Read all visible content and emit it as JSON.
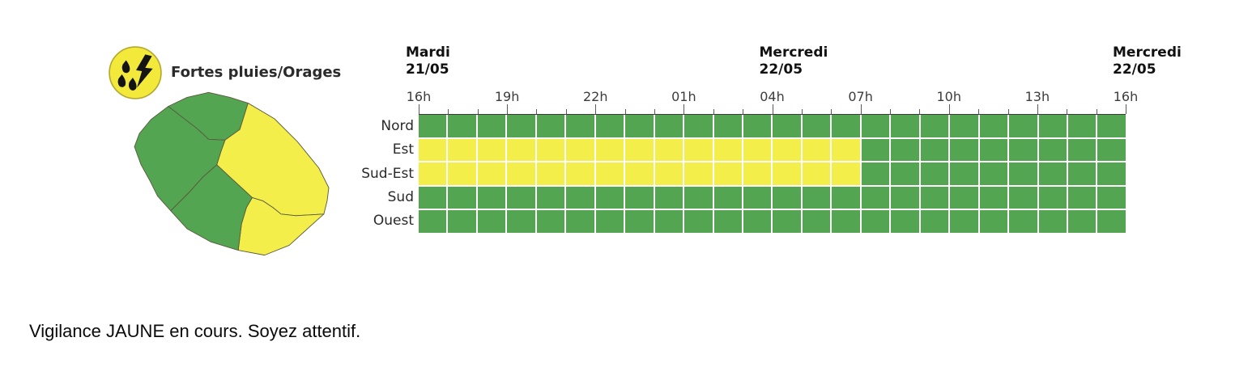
{
  "alert": {
    "type_label": "Fortes pluies/Orages",
    "icon": "rain-thunderstorm-icon",
    "icon_bg_color": "#f2e93b",
    "icon_border_color": "#b3a930",
    "icon_glyph_color": "#141414"
  },
  "chart_data": {
    "type": "heatmap",
    "x_axis": {
      "tick_labels": [
        "16h",
        "19h",
        "22h",
        "01h",
        "04h",
        "07h",
        "10h",
        "13h",
        "16h"
      ],
      "tick_step_hours": 3,
      "hours_total": 24
    },
    "day_markers": [
      {
        "day": "Mardi",
        "date": "21/05",
        "position_hours": 0
      },
      {
        "day": "Mercredi",
        "date": "22/05",
        "position_hours": 12
      },
      {
        "day": "Mercredi",
        "date": "22/05",
        "position_hours": 24
      }
    ],
    "rows": [
      {
        "label": "Nord",
        "segments": [
          {
            "state": "green",
            "hours": 24
          }
        ]
      },
      {
        "label": "Est",
        "segments": [
          {
            "state": "yellow",
            "hours": 15
          },
          {
            "state": "green",
            "hours": 9
          }
        ]
      },
      {
        "label": "Sud-Est",
        "segments": [
          {
            "state": "yellow",
            "hours": 15
          },
          {
            "state": "green",
            "hours": 9
          }
        ]
      },
      {
        "label": "Sud",
        "segments": [
          {
            "state": "green",
            "hours": 24
          }
        ]
      },
      {
        "label": "Ouest",
        "segments": [
          {
            "state": "green",
            "hours": 24
          }
        ]
      }
    ],
    "colors": {
      "green": "#53a551",
      "yellow": "#f4ee4a"
    },
    "grid_line_color": "#ffffff",
    "axis_color": "#3a3a3a"
  },
  "map": {
    "regions": [
      {
        "name": "Nord",
        "state": "green"
      },
      {
        "name": "Est",
        "state": "yellow"
      },
      {
        "name": "Sud-Est",
        "state": "yellow"
      },
      {
        "name": "Sud",
        "state": "green"
      },
      {
        "name": "Ouest",
        "state": "green"
      }
    ]
  },
  "status_text": "Vigilance JAUNE en cours. Soyez attentif."
}
